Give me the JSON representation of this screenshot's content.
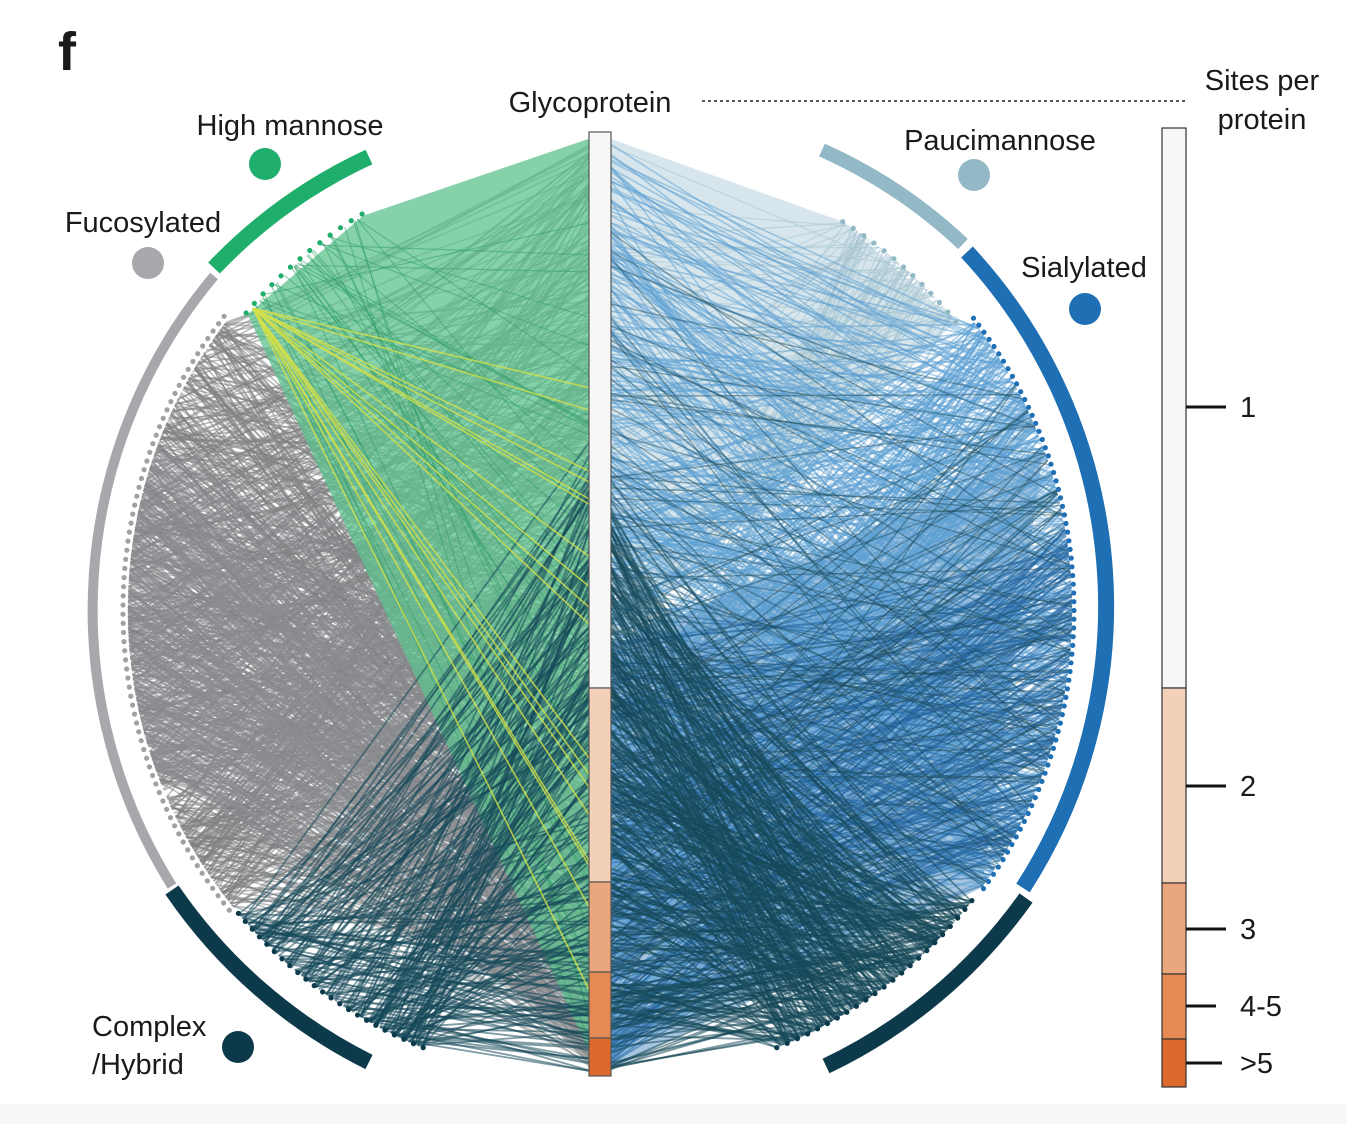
{
  "panel_letter": "f",
  "center_title": "Glycoprotein",
  "legend": {
    "title_line1": "Sites per",
    "title_line2": "protein",
    "bins": [
      {
        "label": "1",
        "color": "#f7f7f7"
      },
      {
        "label": "2",
        "color": "#f2d1b8"
      },
      {
        "label": "3",
        "color": "#eaa67c"
      },
      {
        "label": "4-5",
        "color": "#e38a55"
      },
      {
        "label": ">5",
        "color": "#dc6a2c"
      }
    ]
  },
  "glycan_groups": [
    {
      "key": "high_mannose",
      "label": "High mannose",
      "color": "#1fae6b",
      "link_color": "#5cc28d"
    },
    {
      "key": "fucosylated",
      "label": "Fucosylated",
      "color": "#a6a8ac",
      "link_color": "#7f8184"
    },
    {
      "key": "complex_hybrid",
      "label_line1": "Complex",
      "label_line2": "/Hybrid",
      "color": "#0d3a4a",
      "link_color": "#16495a"
    },
    {
      "key": "paucimannose",
      "label": "Paucimannose",
      "color": "#93b8c6",
      "link_color": "#b7d2dc"
    },
    {
      "key": "sialylated",
      "label": "Sialylated",
      "color": "#1f6fb4",
      "link_color": "#5b9fd3"
    }
  ],
  "accent_link_color": "#d4e04a"
}
